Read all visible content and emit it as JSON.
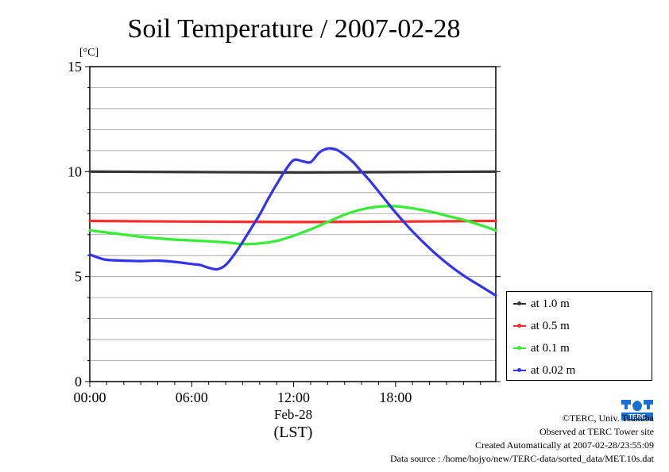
{
  "chart_data": {
    "type": "line",
    "title": "Soil Temperature / 2007-02-28",
    "ylabel": "[°C]",
    "ylim": [
      0,
      15
    ],
    "xlim": [
      0,
      23.9
    ],
    "yticks": [
      0,
      5,
      10,
      15
    ],
    "xticks": [
      {
        "value": 0,
        "label": "00:00"
      },
      {
        "value": 6,
        "label": "06:00"
      },
      {
        "value": 12,
        "label": "12:00"
      },
      {
        "value": 18,
        "label": "18:00"
      }
    ],
    "x_date_label": "Feb-28",
    "x_axis_title": "(LST)",
    "grid": "horizontal",
    "legend_placement": "right-bottom-outside",
    "series": [
      {
        "name": "at 1.0 m",
        "color": "#333333",
        "x": [
          0,
          6,
          12,
          18,
          23.9
        ],
        "values": [
          10.0,
          9.98,
          9.96,
          9.98,
          10.0
        ]
      },
      {
        "name": "at 0.5 m",
        "color": "#ff2a2a",
        "x": [
          0,
          6,
          12,
          18,
          23.9
        ],
        "values": [
          7.65,
          7.62,
          7.6,
          7.62,
          7.65
        ]
      },
      {
        "name": "at 0.1 m",
        "color": "#33ee33",
        "x": [
          0,
          1,
          2,
          3,
          4,
          5,
          6,
          7,
          8,
          9,
          10,
          11,
          12,
          13,
          14,
          15,
          16,
          17,
          18,
          19,
          20,
          21,
          22,
          23,
          23.9
        ],
        "values": [
          7.2,
          7.1,
          7.0,
          6.9,
          6.82,
          6.76,
          6.72,
          6.68,
          6.63,
          6.55,
          6.58,
          6.7,
          6.95,
          7.25,
          7.6,
          7.95,
          8.2,
          8.33,
          8.35,
          8.25,
          8.1,
          7.9,
          7.7,
          7.45,
          7.2
        ]
      },
      {
        "name": "at 0.02 m",
        "color": "#3333ee",
        "x": [
          0,
          0.5,
          1,
          2,
          3,
          4,
          5,
          6,
          6.5,
          7,
          7.5,
          8,
          8.5,
          9,
          9.5,
          10,
          10.5,
          11,
          11.5,
          12,
          12.5,
          13,
          13.5,
          14,
          14.5,
          15,
          15.5,
          16,
          16.5,
          17,
          17.5,
          18,
          19,
          20,
          21,
          22,
          23,
          23.9
        ],
        "values": [
          6.05,
          5.9,
          5.8,
          5.76,
          5.74,
          5.76,
          5.7,
          5.6,
          5.55,
          5.42,
          5.35,
          5.55,
          6.05,
          6.65,
          7.3,
          7.95,
          8.7,
          9.4,
          10.05,
          10.55,
          10.5,
          10.45,
          10.9,
          11.1,
          11.05,
          10.8,
          10.45,
          10.0,
          9.55,
          9.05,
          8.55,
          8.05,
          7.15,
          6.35,
          5.65,
          5.05,
          4.55,
          4.1
        ]
      }
    ]
  },
  "credits": {
    "copyright": "©TERC, Univ. Tsukuba",
    "observed": "Observed at TERC Tower site",
    "created": "Created Automatically at 2007-02-28/23:55:09",
    "source": "Data source : /home/hojyo/new/TERC-data/sorted_data/MET.10s.dat"
  },
  "logo": {
    "text": "TERC"
  }
}
